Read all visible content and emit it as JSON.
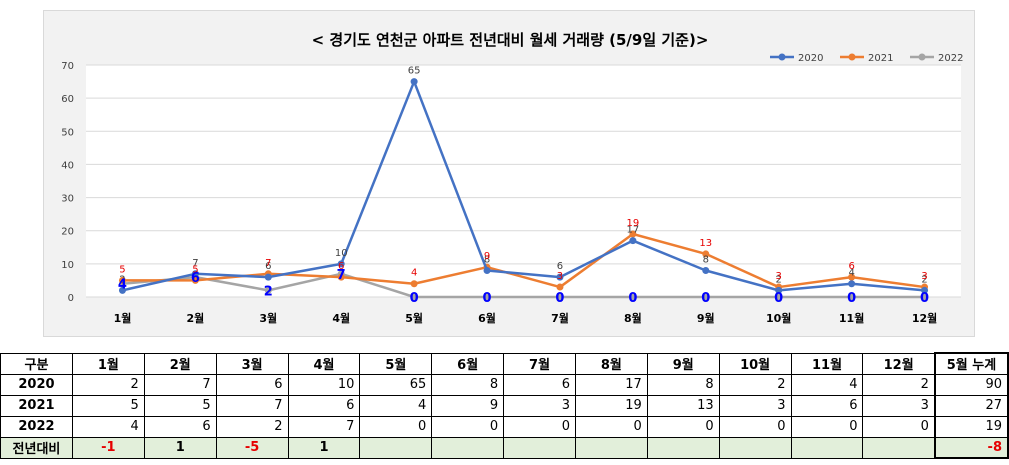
{
  "chart_data": {
    "type": "line",
    "title": "< 경기도 연천군  아파트 전년대비 월세 거래량 (5/9일 기준)>",
    "categories": [
      "1월",
      "2월",
      "3월",
      "4월",
      "5월",
      "6월",
      "7월",
      "8월",
      "9월",
      "10월",
      "11월",
      "12월"
    ],
    "ylim": [
      0,
      70
    ],
    "yticks": [
      0,
      10,
      20,
      30,
      40,
      50,
      60,
      70
    ],
    "grid": true,
    "legend_position": "top-right",
    "series": [
      {
        "name": "2020",
        "color": "#4472c4",
        "values": [
          2,
          7,
          6,
          10,
          65,
          8,
          6,
          17,
          8,
          2,
          4,
          2
        ],
        "labels": [
          "2",
          "7",
          "6",
          "10",
          "65",
          "8",
          "6",
          "17",
          "8",
          "2",
          "4",
          "2"
        ],
        "label_color": "#404040"
      },
      {
        "name": "2021",
        "color": "#ed7d31",
        "values": [
          5,
          5,
          7,
          6,
          4,
          9,
          3,
          19,
          13,
          3,
          6,
          3
        ],
        "labels": [
          "5",
          "5",
          "7",
          "6",
          "4",
          "9",
          "3",
          "19",
          "13",
          "3",
          "6",
          "3"
        ],
        "label_color": "#e60000"
      },
      {
        "name": "2022",
        "color": "#a5a5a5",
        "values": [
          4,
          6,
          2,
          7,
          0,
          0,
          0,
          0,
          0,
          0,
          0,
          0
        ],
        "labels": [
          "4",
          "6",
          "2",
          "7",
          "0",
          "0",
          "0",
          "0",
          "0",
          "0",
          "0",
          "0"
        ],
        "label_color": "#0000ff"
      }
    ]
  },
  "table": {
    "header": [
      "구분",
      "1월",
      "2월",
      "3월",
      "4월",
      "5월",
      "6월",
      "7월",
      "8월",
      "9월",
      "10월",
      "11월",
      "12월",
      "5월 누계"
    ],
    "rows": [
      {
        "label": "2020",
        "cells": [
          "2",
          "7",
          "6",
          "10",
          "65",
          "8",
          "6",
          "17",
          "8",
          "2",
          "4",
          "2",
          "90"
        ]
      },
      {
        "label": "2021",
        "cells": [
          "5",
          "5",
          "7",
          "6",
          "4",
          "9",
          "3",
          "19",
          "13",
          "3",
          "6",
          "3",
          "27"
        ]
      },
      {
        "label": "2022",
        "cells": [
          "4",
          "6",
          "2",
          "7",
          "0",
          "0",
          "0",
          "0",
          "0",
          "0",
          "0",
          "0",
          "19"
        ]
      },
      {
        "label": "전년대비",
        "cells": [
          "-1",
          "1",
          "-5",
          "1",
          "",
          "",
          "",
          "",
          "",
          "",
          "",
          "",
          "-8"
        ]
      }
    ]
  }
}
